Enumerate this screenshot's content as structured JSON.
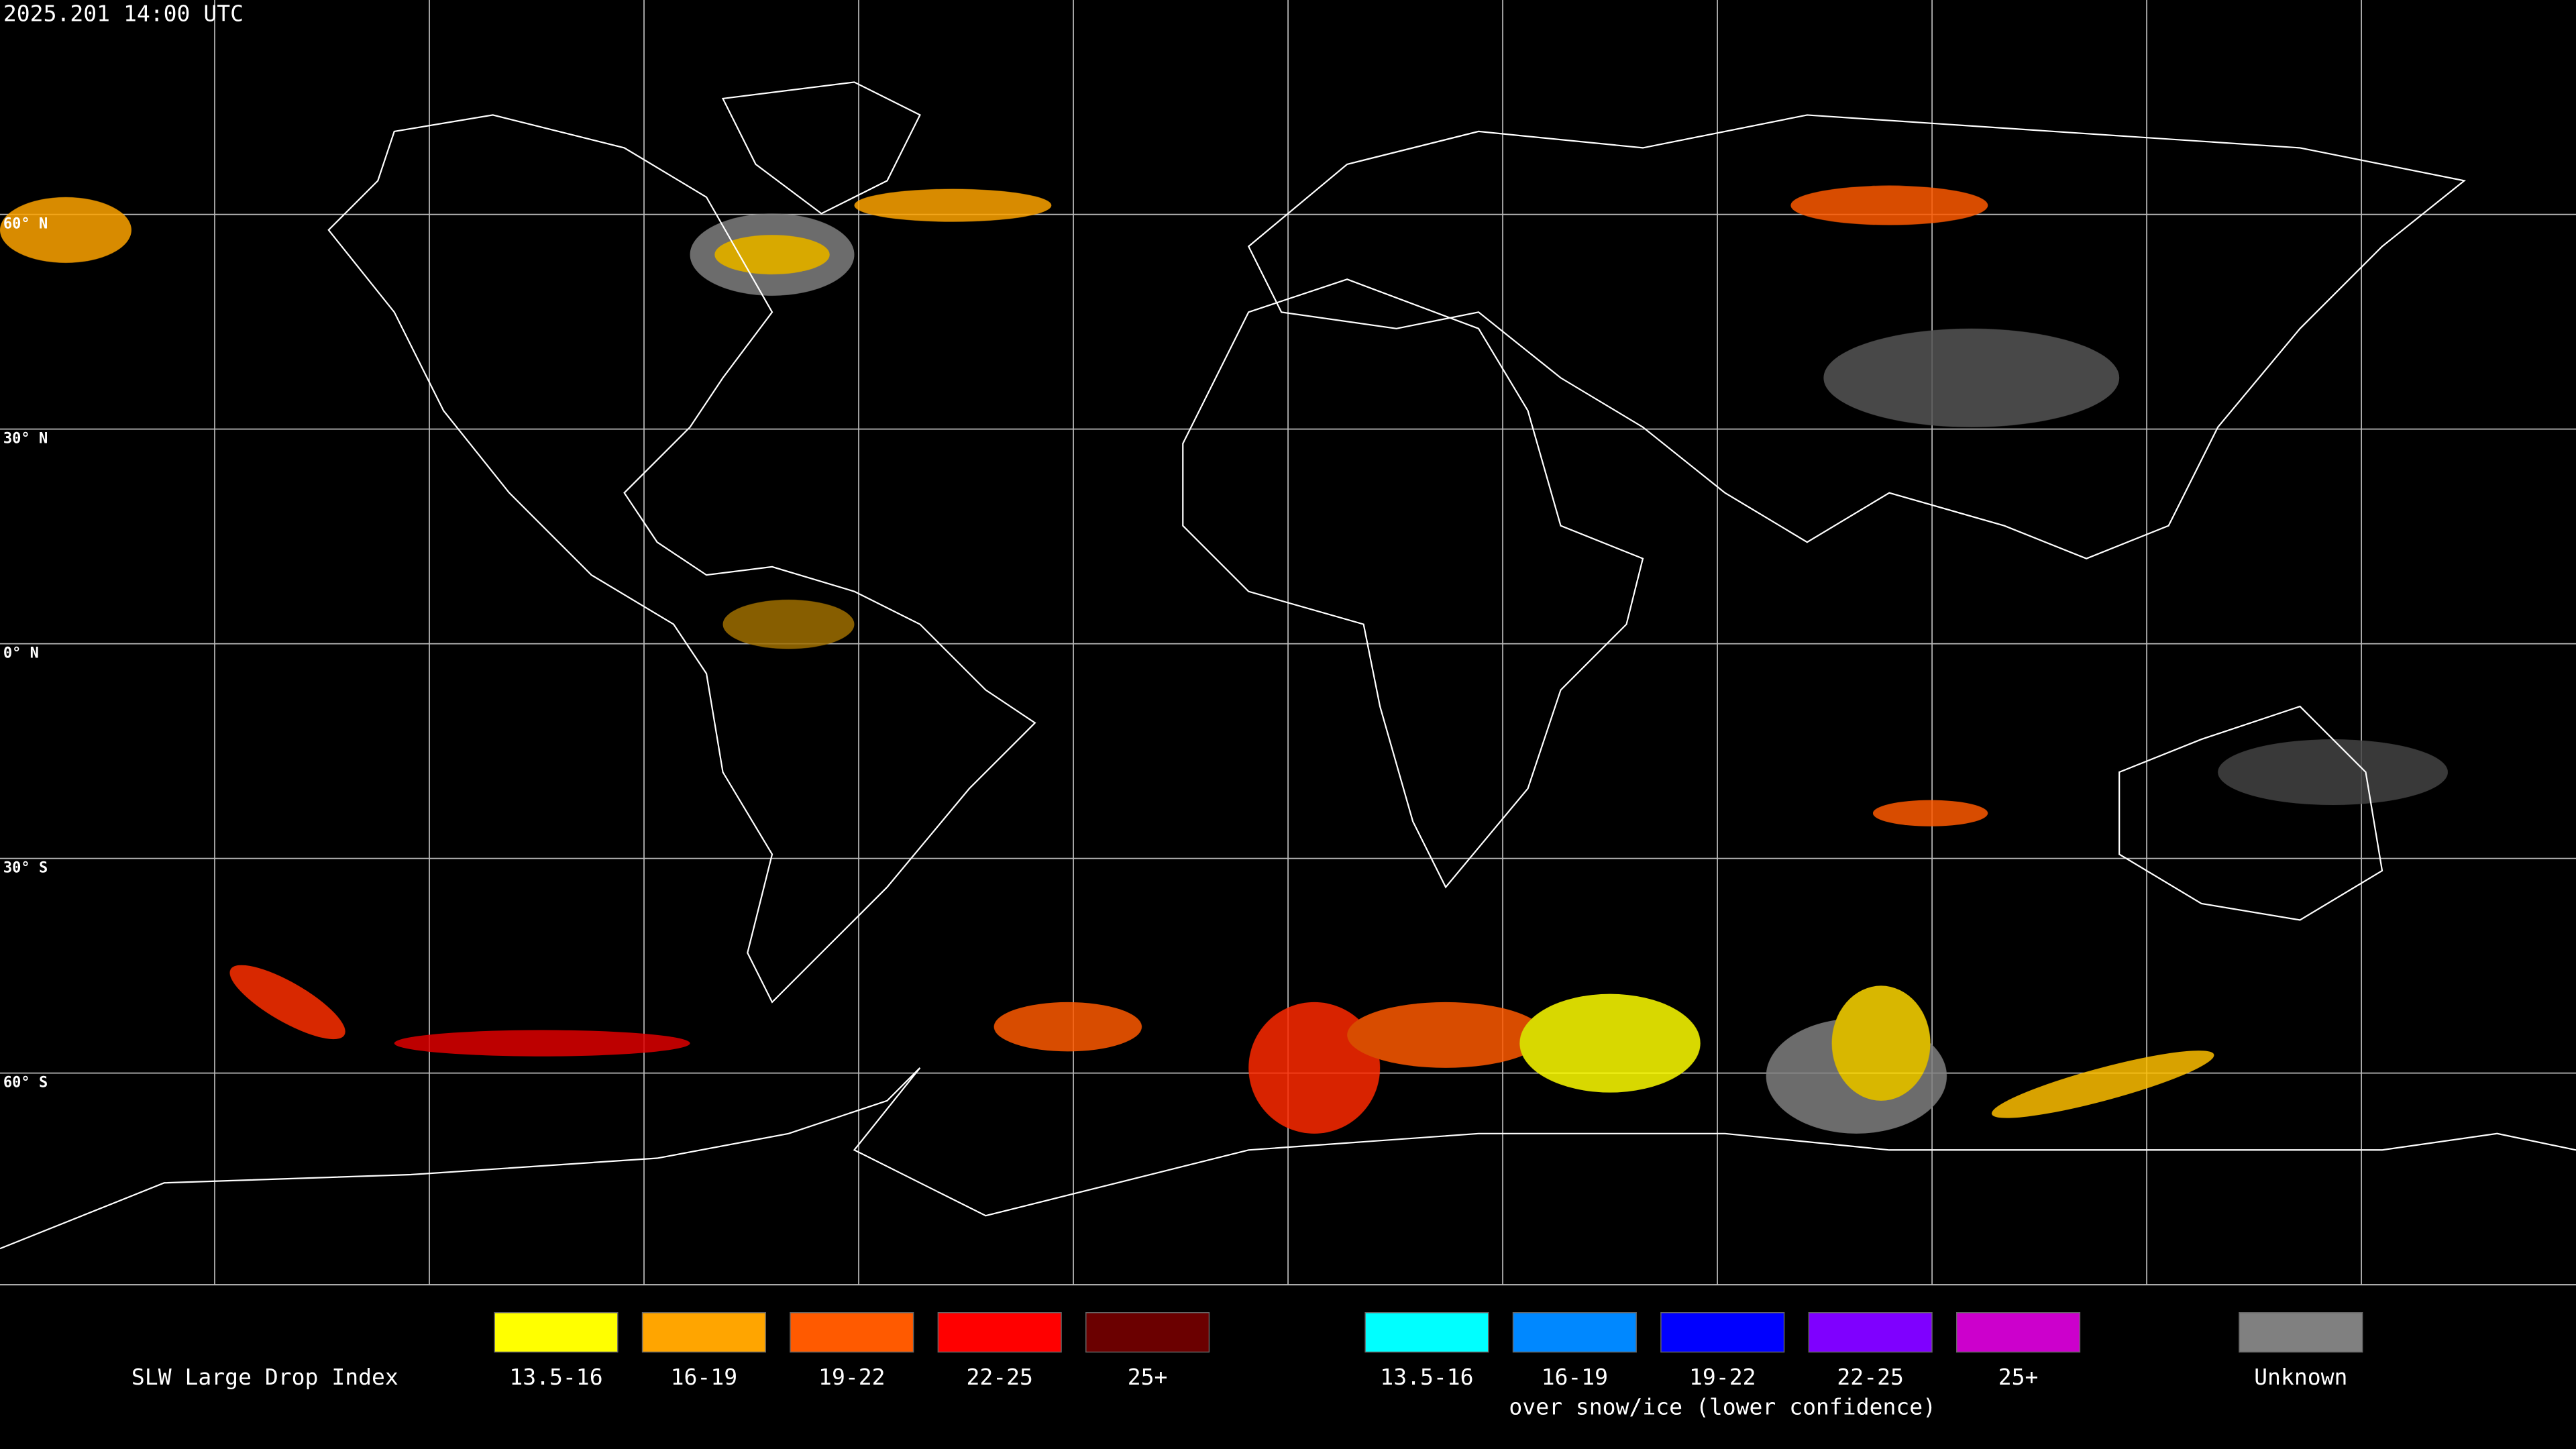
{
  "timestamp": "2025.201 14:00 UTC",
  "map": {
    "latitude_labels": [
      "60° N",
      "30° N",
      "0° N",
      "30° S",
      "60° S"
    ]
  },
  "legend": {
    "title": "SLW Large Drop Index",
    "groups": [
      {
        "items": [
          {
            "label": "13.5-16",
            "color": "#ffff00"
          },
          {
            "label": "16-19",
            "color": "#ffa500"
          },
          {
            "label": "19-22",
            "color": "#ff5a00"
          },
          {
            "label": "22-25",
            "color": "#ff0000"
          },
          {
            "label": "25+",
            "color": "#6b0000"
          }
        ]
      },
      {
        "items": [
          {
            "label": "13.5-16",
            "color": "#00ffff"
          },
          {
            "label": "16-19",
            "color": "#0088ff"
          },
          {
            "label": "19-22",
            "color": "#0000ff"
          },
          {
            "label": "22-25",
            "color": "#7f00ff"
          },
          {
            "label": "25+",
            "color": "#cc00cc"
          }
        ],
        "caption": "over snow/ice (lower confidence)"
      }
    ],
    "unknown": {
      "label": "Unknown",
      "color": "#808080"
    }
  }
}
